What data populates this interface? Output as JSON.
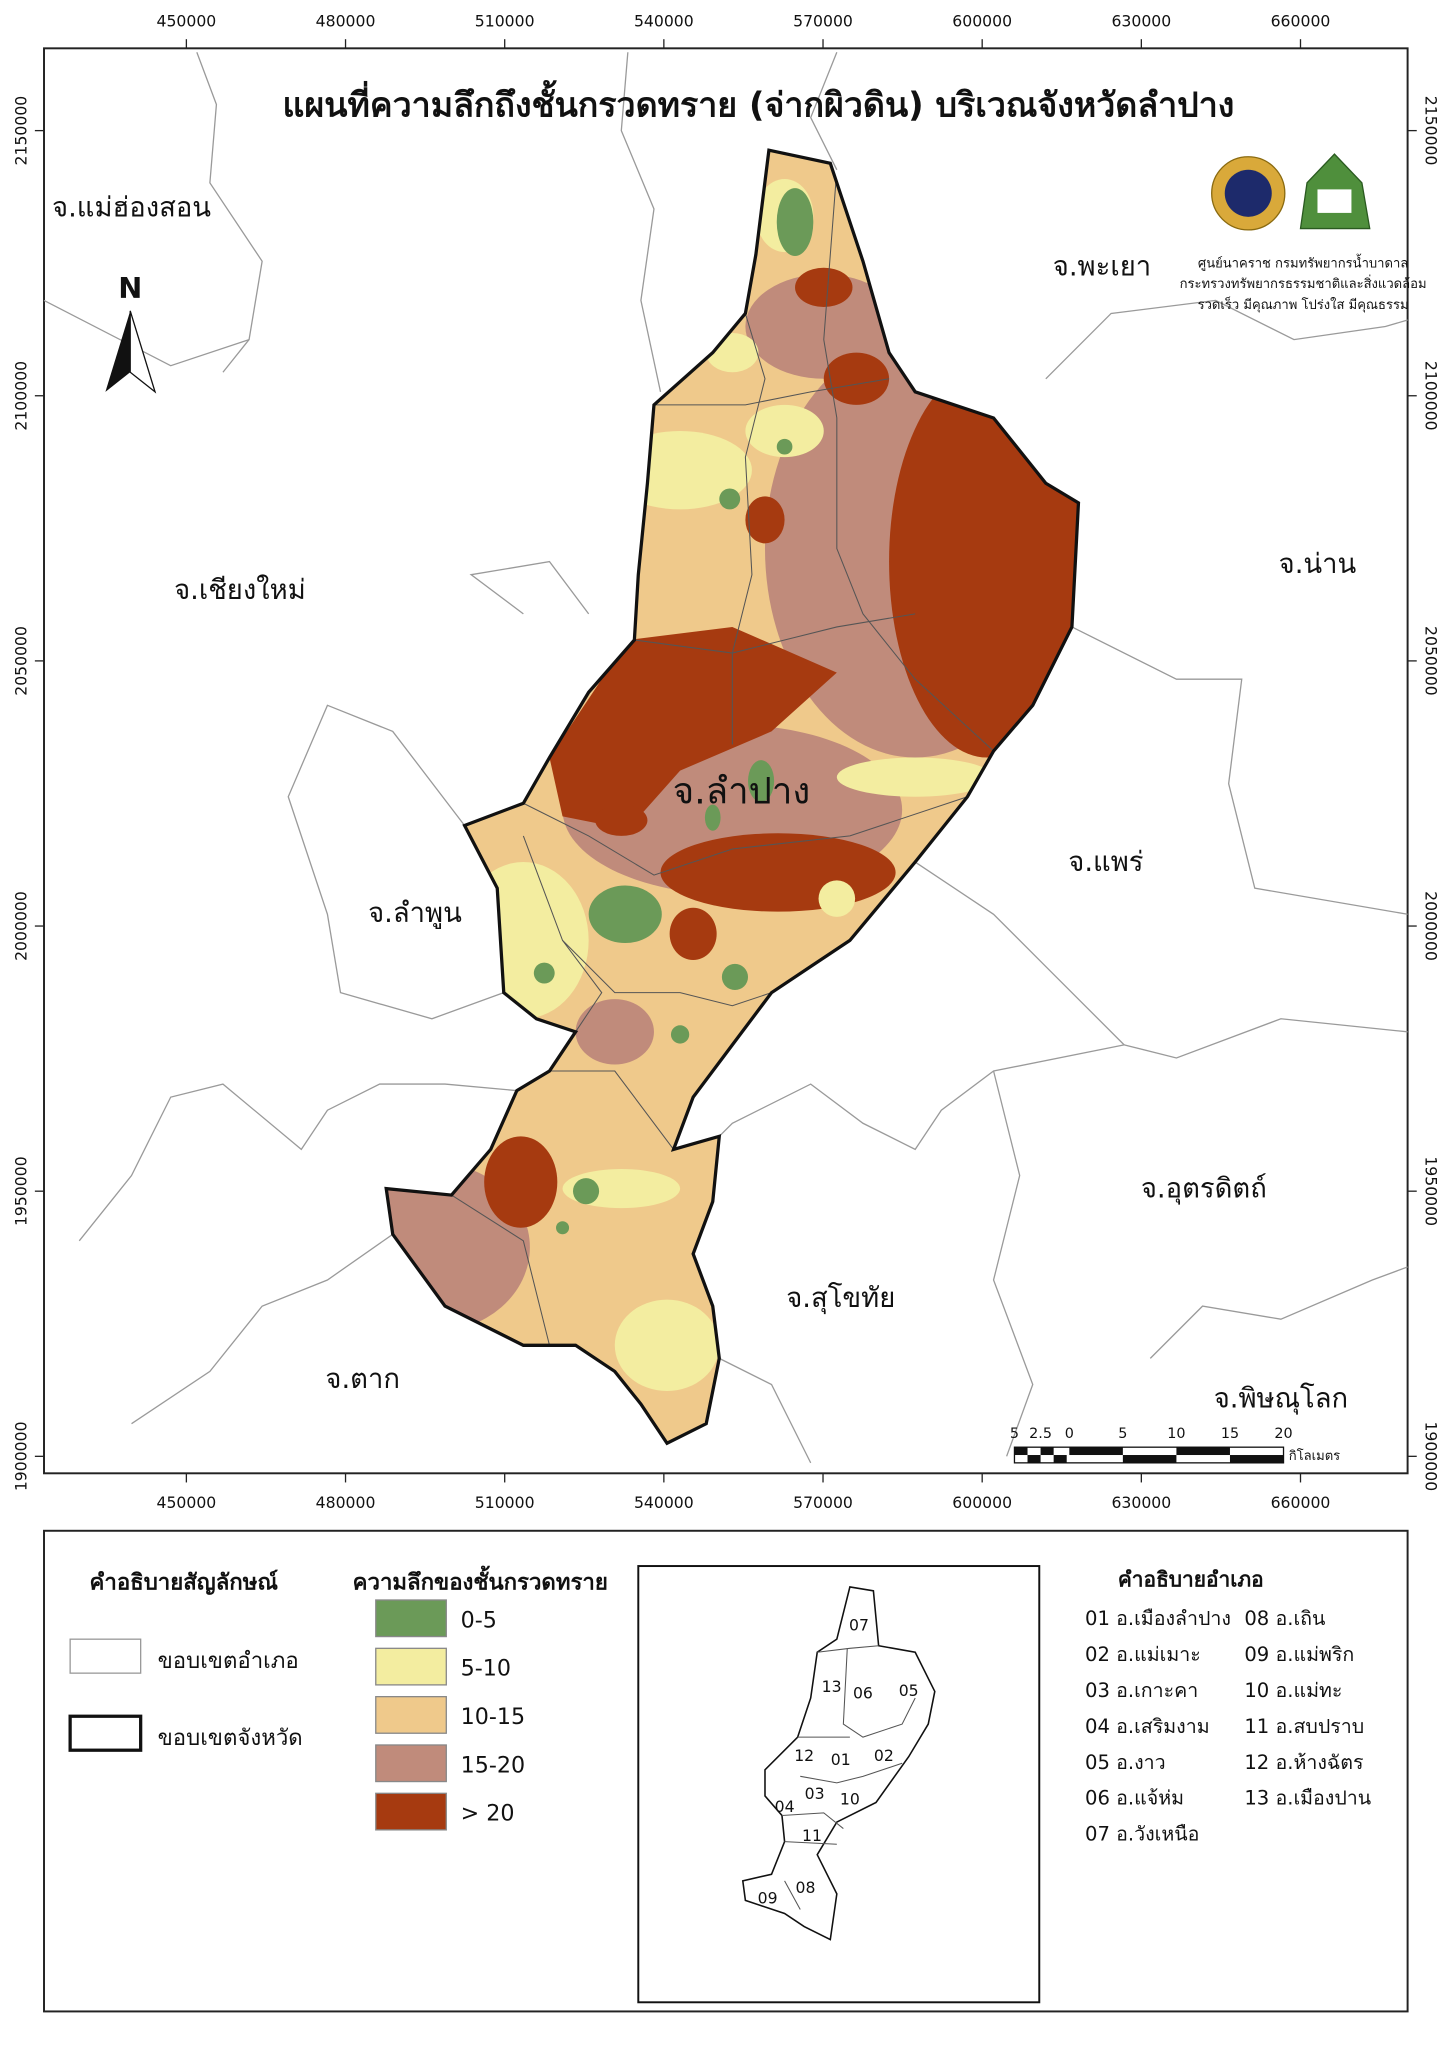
{
  "title": "แผนที่ความลึกถึงชั้นกรวดทราย (จ่ากผิวดิน) บริเวณจังหวัดลำปาง",
  "map": {
    "x_ticks": [
      450000,
      480000,
      510000,
      540000,
      570000,
      600000,
      630000,
      660000
    ],
    "y_ticks": [
      2150000,
      2100000,
      2050000,
      2000000,
      1950000,
      1900000
    ],
    "provinces": [
      "จ.แม่ฮ่องสอน",
      "จ.พะเยา",
      "จ.เชียงใหม่",
      "จ.น่าน",
      "จ.แพร่",
      "จ.ลำพูน",
      "จ.อุตรดิตถ์",
      "จ.สุโขทัย",
      "จ.ตาก",
      "จ.พิษณุโลก"
    ],
    "main_province": "จ.ลำปาง",
    "north": "N"
  },
  "agency": {
    "lines": [
      "ศูนย์นาคราช กรมทรัพยากรน้ำบาดาล",
      "กระทรวงทรัพยากรธรรมชาติและสิ่งแวดล้อม",
      "รวดเร็ว มีคุณภาพ โปร่งใส มีคุณธรรม"
    ]
  },
  "scale_bar": {
    "labels": [
      5,
      2.5,
      0,
      5,
      10,
      15,
      20
    ],
    "unit": "กิโลเมตร"
  },
  "legend": {
    "title": "คำอธิบายสัญลักษณ์",
    "items": [
      "ขอบเขตอำเภอ",
      "ขอบเขตจังหวัด"
    ]
  },
  "depth_legend": {
    "title": "ความลึกของชั้นกรวดทราย",
    "classes": [
      {
        "label": "0-5",
        "color": "#6b9a58"
      },
      {
        "label": "5-10",
        "color": "#f3eda0"
      },
      {
        "label": "10-15",
        "color": "#efc98b"
      },
      {
        "label": "15-20",
        "color": "#c08b7b"
      },
      {
        "label": "> 20",
        "color": "#a63a10"
      }
    ]
  },
  "inset": {
    "labels": [
      "07",
      "13",
      "06",
      "05",
      "12",
      "01",
      "02",
      "04",
      "03",
      "10",
      "11",
      "08",
      "09"
    ]
  },
  "districts": {
    "title": "คำอธิบายอำเภอ",
    "items": [
      "01 อ.เมืองลำปาง",
      "02 อ.แม่เมาะ",
      "03 อ.เกาะคา",
      "04 อ.เสริมงาม",
      "05 อ.งาว",
      "06 อ.แจ้ห่ม",
      "07 อ.วังเหนือ",
      "08 อ.เถิน",
      "09 อ.แม่พริก",
      "10 อ.แม่ทะ",
      "11 อ.สบปราบ",
      "12 อ.ห้างฉัตร",
      "13 อ.เมืองปาน"
    ]
  }
}
